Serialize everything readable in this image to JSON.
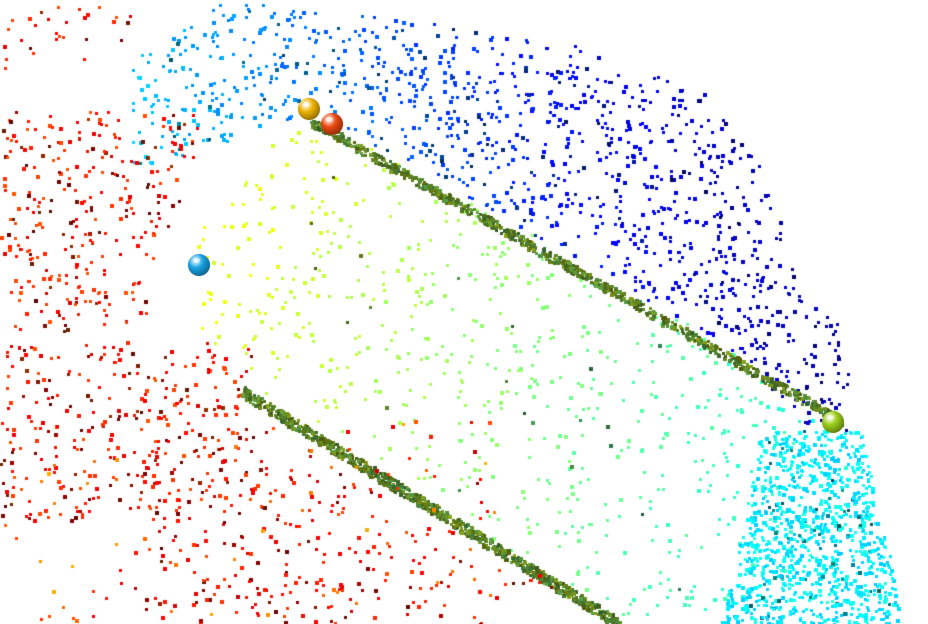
{
  "scene": {
    "background_color": "#ffffff",
    "colormap": "jet"
  },
  "markers": [
    {
      "name": "marker-sphere-yellow",
      "color": "#f2b705"
    },
    {
      "name": "marker-sphere-red",
      "color": "#f04a12"
    },
    {
      "name": "marker-sphere-blue",
      "color": "#1aa6e8"
    },
    {
      "name": "marker-sphere-lime",
      "color": "#9fd21a"
    }
  ]
}
